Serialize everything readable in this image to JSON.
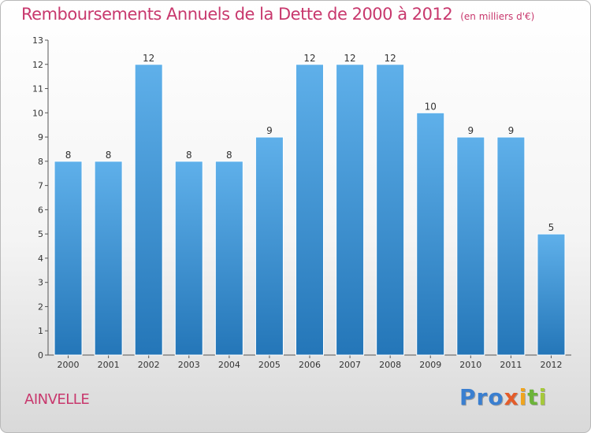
{
  "header": {
    "title": "Remboursements Annuels de la Dette de 2000 à 2012",
    "unit": "(en milliers d'€)"
  },
  "footer": {
    "commune": "AINVELLE",
    "logo": [
      "Pro",
      "x",
      "i",
      "t",
      "i"
    ]
  },
  "colors": {
    "title": "#c8386d",
    "bar_top": "#5fb0ea",
    "bar_bottom": "#2476b8"
  },
  "chart_data": {
    "type": "bar",
    "title": "Remboursements Annuels de la Dette de 2000 à 2012",
    "subtitle": "(en milliers d'€)",
    "categories": [
      "2000",
      "2001",
      "2002",
      "2003",
      "2004",
      "2005",
      "2006",
      "2007",
      "2008",
      "2009",
      "2010",
      "2011",
      "2012"
    ],
    "values": [
      8,
      8,
      12,
      8,
      8,
      9,
      12,
      12,
      12,
      10,
      9,
      9,
      5
    ],
    "ylim": [
      0,
      13
    ],
    "yticks": [
      0,
      1,
      2,
      3,
      4,
      5,
      6,
      7,
      8,
      9,
      10,
      11,
      12,
      13
    ],
    "grid": false,
    "xlabel": "",
    "ylabel": ""
  }
}
